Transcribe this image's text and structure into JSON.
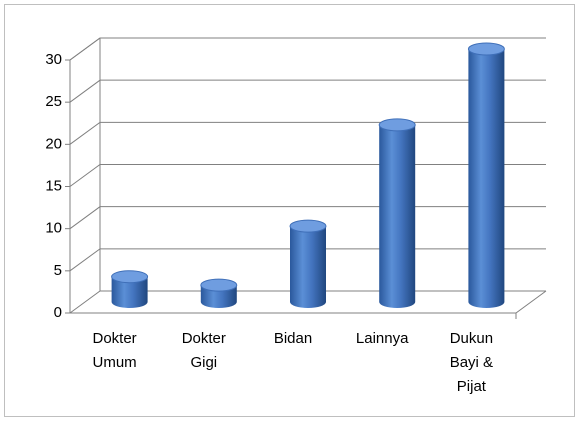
{
  "chart_data": {
    "type": "bar",
    "categories": [
      "Dokter Umum",
      "Dokter Gigi",
      "Bidan",
      "Lainnya",
      "Dukun Bayi & Pijat"
    ],
    "values": [
      3,
      2,
      9,
      21,
      30
    ],
    "color": "#3f6fb8",
    "ylim": [
      0,
      30
    ],
    "yticks": [
      0,
      5,
      10,
      15,
      20,
      25,
      30
    ],
    "grid": true
  }
}
